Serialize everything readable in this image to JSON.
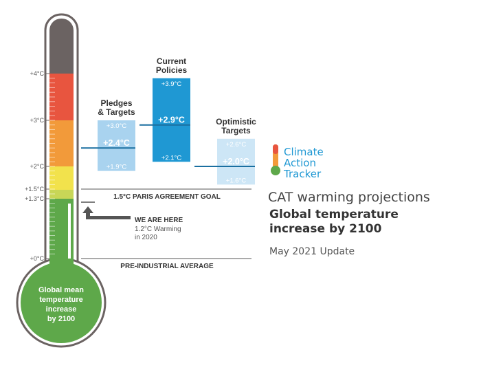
{
  "chart_data": {
    "type": "bar",
    "thermometer": {
      "scale_labels": [
        "+4°C",
        "+3°C",
        "+2°C",
        "+1.5°C",
        "+1.3°C",
        "+0°C"
      ],
      "bulb_label_lines": [
        "Global mean",
        "temperature",
        "increase",
        "by 2100"
      ],
      "zone_colors": [
        "#6b6362",
        "#e8553f",
        "#f29a3a",
        "#f2e24c",
        "#c8d657",
        "#5ea84a"
      ]
    },
    "series": [
      {
        "name_lines": [
          "Pledges",
          "& Targets"
        ],
        "low": 1.9,
        "central": 2.4,
        "high": 3.0,
        "low_label": "+1.9°C",
        "central_label": "+2.4°C",
        "high_label": "+3.0°C",
        "color": "#a9d3ef"
      },
      {
        "name_lines": [
          "Current",
          "Policies"
        ],
        "low": 2.1,
        "central": 2.9,
        "high": 3.9,
        "low_label": "+2.1°C",
        "central_label": "+2.9°C",
        "high_label": "+3.9°C",
        "color": "#1f98d3"
      },
      {
        "name_lines": [
          "Optimistic",
          "Targets"
        ],
        "low": 1.6,
        "central": 2.0,
        "high": 2.6,
        "low_label": "+1.6°C",
        "central_label": "+2.0°C",
        "high_label": "+2.6°C",
        "color": "#cde6f6"
      }
    ],
    "reference_lines": [
      {
        "value": 1.5,
        "label": "1.5°C PARIS AGREEMENT GOAL"
      },
      {
        "value": 0,
        "label": "PRE-INDUSTRIAL AVERAGE"
      }
    ],
    "annotation": {
      "heading": "WE ARE HERE",
      "lines": [
        "1.2°C Warming",
        "in 2020"
      ],
      "value": 1.2
    }
  },
  "logo": {
    "line1": "Climate",
    "line2": "Action",
    "line3": "Tracker"
  },
  "title": {
    "line1": "CAT warming projections",
    "line2": "Global temperature",
    "line3": "increase by 2100"
  },
  "update": "May 2021 Update"
}
